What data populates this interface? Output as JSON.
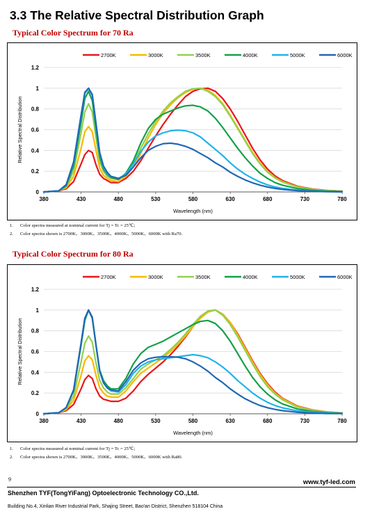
{
  "section_title": "3.3 The Relative Spectral Distribution Graph",
  "charts_meta": [
    {
      "subtitle": "Typical Color Spectrum for 70 Ra",
      "notes": [
        {
          "n": "1.",
          "text": "Color spectra measured at nominal current for Tj = Tc = 25℃;"
        },
        {
          "n": "2.",
          "text": "Color spectra shown is 2700K、3000K、3500K、4000K、5000K、6000K with Ra70."
        }
      ]
    },
    {
      "subtitle": "Typical Color Spectrum for 80 Ra",
      "notes": [
        {
          "n": "1.",
          "text": "Color spectra measured at nominal current for Tj = Tc = 25℃;"
        },
        {
          "n": "2.",
          "text": "Color spectra shown is 2700K、3000K、3500K、4000K、5000K、6000K with Ra80."
        }
      ]
    }
  ],
  "chart_data": [
    {
      "type": "line",
      "xlabel": "Wavelength (nm)",
      "ylabel": "Relative Spectral Distribution",
      "xlim": [
        380,
        780
      ],
      "ylim": [
        0,
        1.2
      ],
      "xticks": [
        "380",
        "430",
        "480",
        "530",
        "580",
        "630",
        "680",
        "730",
        "780"
      ],
      "yticks": [
        "0",
        "0.2",
        "0.4",
        "0.6",
        "0.8",
        "1",
        "1.2"
      ],
      "grid": "horizontal",
      "legend": "top",
      "x": [
        380,
        400,
        410,
        420,
        430,
        435,
        440,
        445,
        450,
        455,
        460,
        465,
        470,
        480,
        490,
        500,
        510,
        520,
        530,
        540,
        550,
        560,
        570,
        580,
        590,
        600,
        610,
        620,
        630,
        640,
        650,
        660,
        670,
        680,
        690,
        700,
        720,
        740,
        760,
        780
      ],
      "series": [
        {
          "name": "2700K",
          "color": "#e8161b",
          "values": [
            0,
            0.01,
            0.03,
            0.1,
            0.27,
            0.36,
            0.4,
            0.38,
            0.26,
            0.17,
            0.13,
            0.11,
            0.09,
            0.09,
            0.13,
            0.2,
            0.3,
            0.42,
            0.54,
            0.65,
            0.75,
            0.84,
            0.92,
            0.97,
            0.995,
            1.0,
            0.97,
            0.9,
            0.8,
            0.68,
            0.55,
            0.42,
            0.31,
            0.22,
            0.155,
            0.11,
            0.055,
            0.028,
            0.015,
            0.008
          ]
        },
        {
          "name": "3000K",
          "color": "#f9b800",
          "values": [
            0,
            0.01,
            0.04,
            0.15,
            0.42,
            0.58,
            0.63,
            0.58,
            0.4,
            0.23,
            0.16,
            0.13,
            0.11,
            0.1,
            0.15,
            0.24,
            0.37,
            0.52,
            0.65,
            0.76,
            0.84,
            0.91,
            0.96,
            0.99,
            1.0,
            0.98,
            0.93,
            0.85,
            0.74,
            0.62,
            0.5,
            0.38,
            0.28,
            0.2,
            0.14,
            0.1,
            0.05,
            0.025,
            0.013,
            0.007
          ]
        },
        {
          "name": "3500K",
          "color": "#92d050",
          "values": [
            0,
            0.01,
            0.05,
            0.2,
            0.57,
            0.77,
            0.85,
            0.77,
            0.52,
            0.29,
            0.2,
            0.15,
            0.13,
            0.12,
            0.17,
            0.28,
            0.42,
            0.56,
            0.68,
            0.78,
            0.86,
            0.92,
            0.97,
            0.995,
            1.0,
            0.97,
            0.92,
            0.84,
            0.73,
            0.61,
            0.49,
            0.37,
            0.27,
            0.19,
            0.135,
            0.095,
            0.048,
            0.024,
            0.012,
            0.006
          ]
        },
        {
          "name": "4000K",
          "color": "#14a04a",
          "values": [
            0,
            0.01,
            0.06,
            0.25,
            0.67,
            0.9,
            0.97,
            0.88,
            0.6,
            0.34,
            0.22,
            0.17,
            0.14,
            0.12,
            0.18,
            0.3,
            0.47,
            0.61,
            0.7,
            0.75,
            0.78,
            0.81,
            0.83,
            0.835,
            0.82,
            0.78,
            0.71,
            0.62,
            0.52,
            0.42,
            0.33,
            0.25,
            0.18,
            0.13,
            0.09,
            0.065,
            0.032,
            0.016,
            0.008,
            0.004
          ]
        },
        {
          "name": "5000K",
          "color": "#1fb3ea",
          "values": [
            0,
            0.01,
            0.07,
            0.28,
            0.73,
            0.95,
            1.0,
            0.93,
            0.65,
            0.37,
            0.24,
            0.18,
            0.15,
            0.13,
            0.17,
            0.27,
            0.39,
            0.48,
            0.54,
            0.57,
            0.59,
            0.595,
            0.59,
            0.57,
            0.53,
            0.47,
            0.41,
            0.35,
            0.28,
            0.22,
            0.17,
            0.13,
            0.095,
            0.068,
            0.048,
            0.034,
            0.017,
            0.008,
            0.004,
            0.002
          ]
        },
        {
          "name": "6000K",
          "color": "#2167b4",
          "values": [
            0,
            0.01,
            0.07,
            0.29,
            0.74,
            0.96,
            1.0,
            0.94,
            0.66,
            0.38,
            0.25,
            0.19,
            0.15,
            0.13,
            0.16,
            0.24,
            0.33,
            0.4,
            0.44,
            0.465,
            0.47,
            0.46,
            0.44,
            0.41,
            0.37,
            0.33,
            0.28,
            0.24,
            0.19,
            0.15,
            0.115,
            0.088,
            0.065,
            0.047,
            0.034,
            0.024,
            0.012,
            0.006,
            0.003,
            0.001
          ]
        }
      ]
    },
    {
      "type": "line",
      "xlabel": "Wavelength (nm)",
      "ylabel": "Relative Spectral Distribution",
      "xlim": [
        380,
        780
      ],
      "ylim": [
        0,
        1.2
      ],
      "xticks": [
        "380",
        "430",
        "480",
        "530",
        "580",
        "630",
        "680",
        "730",
        "780"
      ],
      "yticks": [
        "0",
        "0.2",
        "0.4",
        "0.6",
        "0.8",
        "1",
        "1.2"
      ],
      "grid": "horizontal",
      "legend": "top",
      "x": [
        380,
        400,
        410,
        420,
        430,
        435,
        440,
        445,
        450,
        455,
        460,
        465,
        470,
        480,
        490,
        500,
        510,
        520,
        530,
        540,
        550,
        560,
        570,
        580,
        590,
        600,
        610,
        620,
        630,
        640,
        650,
        660,
        670,
        680,
        690,
        700,
        720,
        740,
        760,
        780
      ],
      "series": [
        {
          "name": "2700K",
          "color": "#e8161b",
          "values": [
            0,
            0.01,
            0.03,
            0.09,
            0.24,
            0.33,
            0.37,
            0.34,
            0.24,
            0.17,
            0.14,
            0.13,
            0.12,
            0.12,
            0.15,
            0.22,
            0.31,
            0.38,
            0.44,
            0.5,
            0.57,
            0.65,
            0.74,
            0.84,
            0.93,
            0.99,
            1.0,
            0.96,
            0.88,
            0.77,
            0.64,
            0.51,
            0.39,
            0.29,
            0.21,
            0.15,
            0.075,
            0.037,
            0.018,
            0.009
          ]
        },
        {
          "name": "3000K",
          "color": "#f9b800",
          "values": [
            0,
            0.01,
            0.04,
            0.13,
            0.37,
            0.51,
            0.56,
            0.52,
            0.37,
            0.25,
            0.2,
            0.17,
            0.16,
            0.16,
            0.22,
            0.31,
            0.39,
            0.44,
            0.49,
            0.54,
            0.6,
            0.67,
            0.75,
            0.84,
            0.92,
            0.98,
            1.0,
            0.96,
            0.88,
            0.76,
            0.63,
            0.5,
            0.38,
            0.28,
            0.2,
            0.145,
            0.072,
            0.035,
            0.017,
            0.008
          ]
        },
        {
          "name": "3500K",
          "color": "#92d050",
          "values": [
            0,
            0.01,
            0.05,
            0.17,
            0.5,
            0.68,
            0.75,
            0.69,
            0.49,
            0.32,
            0.25,
            0.21,
            0.19,
            0.19,
            0.25,
            0.34,
            0.43,
            0.48,
            0.52,
            0.56,
            0.62,
            0.69,
            0.77,
            0.86,
            0.94,
            0.99,
            1.0,
            0.95,
            0.86,
            0.74,
            0.61,
            0.48,
            0.36,
            0.26,
            0.19,
            0.135,
            0.066,
            0.032,
            0.016,
            0.008
          ]
        },
        {
          "name": "4000K",
          "color": "#14a04a",
          "values": [
            0,
            0.01,
            0.06,
            0.22,
            0.66,
            0.9,
            1.0,
            0.92,
            0.66,
            0.42,
            0.32,
            0.27,
            0.24,
            0.24,
            0.34,
            0.48,
            0.58,
            0.64,
            0.67,
            0.7,
            0.74,
            0.78,
            0.82,
            0.86,
            0.89,
            0.9,
            0.87,
            0.8,
            0.7,
            0.58,
            0.46,
            0.35,
            0.26,
            0.19,
            0.135,
            0.095,
            0.046,
            0.022,
            0.011,
            0.005
          ]
        },
        {
          "name": "5000K",
          "color": "#1fb3ea",
          "values": [
            0,
            0.01,
            0.06,
            0.23,
            0.68,
            0.92,
            1.0,
            0.93,
            0.66,
            0.41,
            0.3,
            0.25,
            0.22,
            0.21,
            0.28,
            0.39,
            0.46,
            0.5,
            0.52,
            0.53,
            0.54,
            0.55,
            0.56,
            0.57,
            0.56,
            0.54,
            0.5,
            0.45,
            0.39,
            0.32,
            0.26,
            0.2,
            0.15,
            0.11,
            0.08,
            0.057,
            0.028,
            0.014,
            0.007,
            0.003
          ]
        },
        {
          "name": "6000K",
          "color": "#2167b4",
          "values": [
            0,
            0.01,
            0.06,
            0.23,
            0.68,
            0.92,
            1.0,
            0.93,
            0.66,
            0.41,
            0.3,
            0.25,
            0.23,
            0.22,
            0.31,
            0.42,
            0.49,
            0.53,
            0.545,
            0.55,
            0.55,
            0.545,
            0.53,
            0.5,
            0.46,
            0.41,
            0.35,
            0.3,
            0.24,
            0.19,
            0.145,
            0.11,
            0.08,
            0.058,
            0.042,
            0.03,
            0.015,
            0.007,
            0.003,
            0.002
          ]
        }
      ]
    }
  ],
  "footer": {
    "page_number": "9",
    "website": "www.tyf-led.com",
    "company": "Shenzhen TYF(TongYiFang) Optoelectronic Technology CO.,Ltd.",
    "address": "Building No.4, Xinlian River Industrial Park, Shajing Street, Bao'an District, Shenzhen 518104 China"
  }
}
